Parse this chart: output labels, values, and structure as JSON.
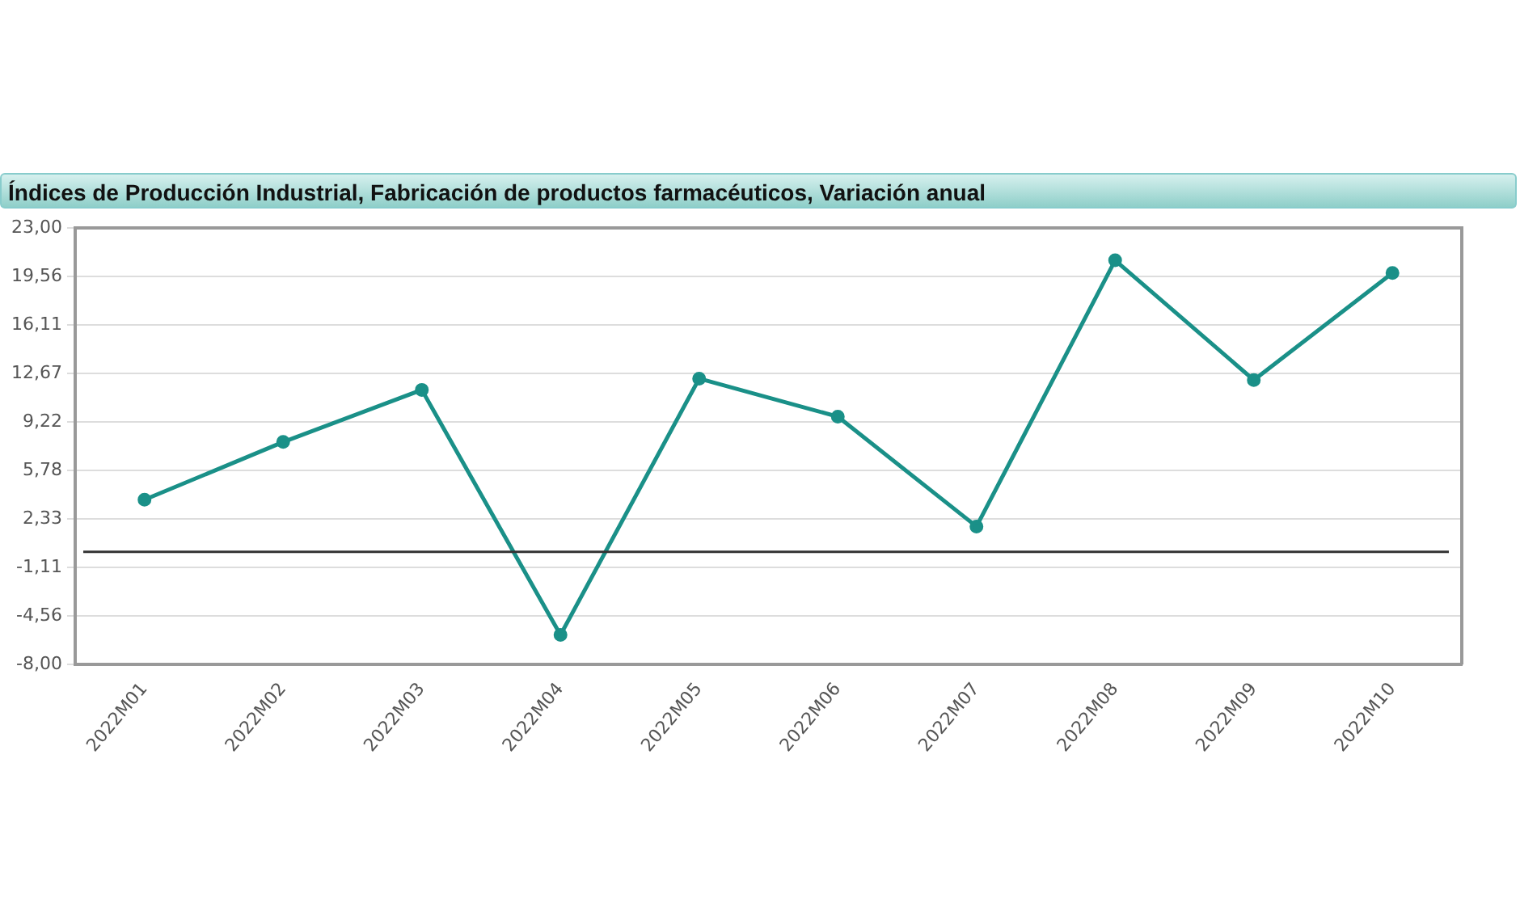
{
  "chart_data": {
    "type": "line",
    "title": "Índices de Producción Industrial, Fabricación de productos farmacéuticos, Variación anual",
    "categories": [
      "2022M01",
      "2022M02",
      "2022M03",
      "2022M04",
      "2022M05",
      "2022M06",
      "2022M07",
      "2022M08",
      "2022M09",
      "2022M10"
    ],
    "series": [
      {
        "color": "#1a9088",
        "values": [
          3.7,
          7.8,
          11.5,
          -5.9,
          12.3,
          9.6,
          1.8,
          20.7,
          12.2,
          19.8
        ]
      }
    ],
    "ylim": [
      -8,
      23
    ],
    "yticks": [
      {
        "value": -8,
        "label": "-8,00"
      },
      {
        "value": -4.56,
        "label": "-4,56"
      },
      {
        "value": -1.11,
        "label": "-1,11"
      },
      {
        "value": 2.33,
        "label": "2,33"
      },
      {
        "value": 5.78,
        "label": "5,78"
      },
      {
        "value": 9.22,
        "label": "9,22"
      },
      {
        "value": 12.67,
        "label": "12,67"
      },
      {
        "value": 16.11,
        "label": "16,11"
      },
      {
        "value": 19.56,
        "label": "19,56"
      },
      {
        "value": 23,
        "label": "23,00"
      }
    ],
    "ref_lines": [
      {
        "axis": "y",
        "value": 0,
        "color": "#333333"
      }
    ],
    "grid": "y",
    "legend": false,
    "marker": "circle",
    "line_style": "solid"
  }
}
